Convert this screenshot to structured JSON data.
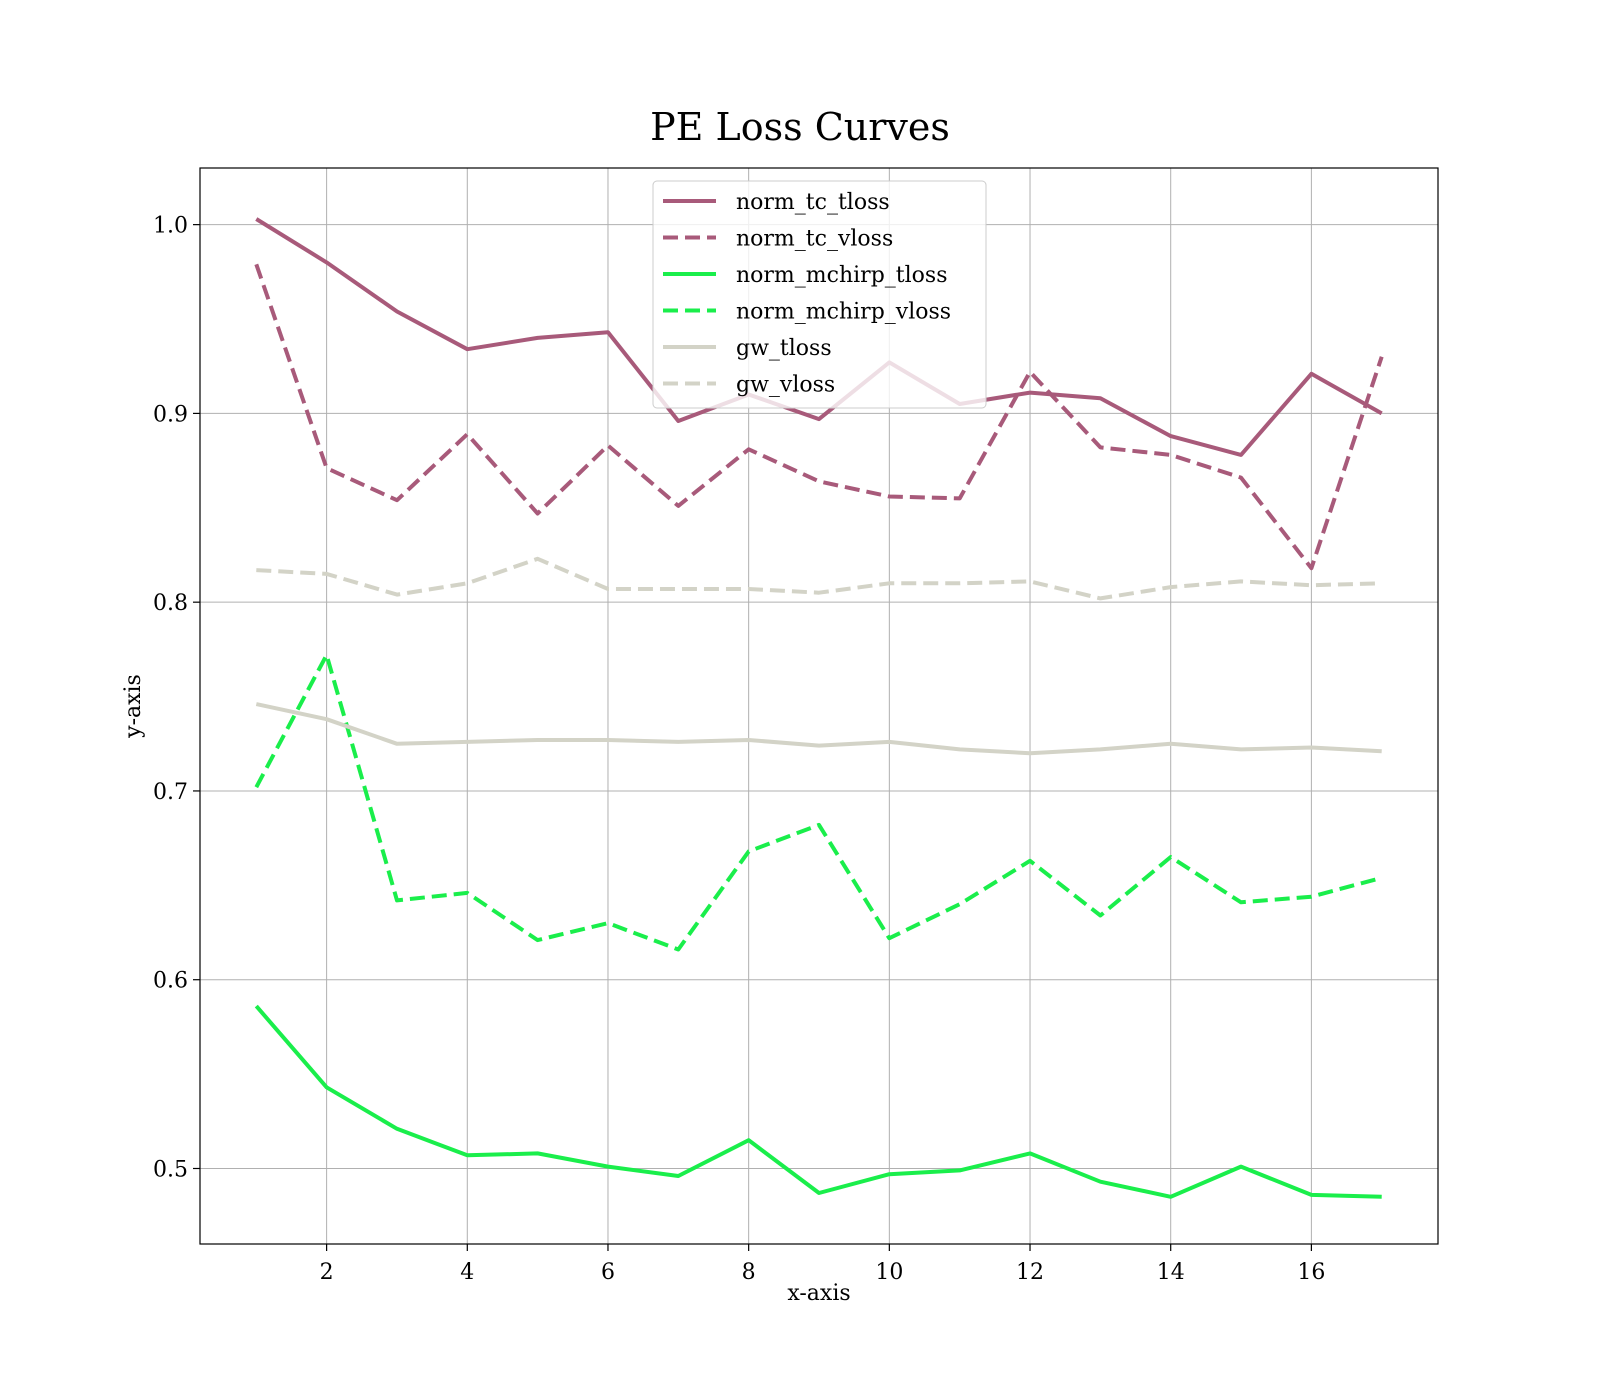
{
  "chart_data": {
    "type": "line",
    "title": "PE Loss Curves",
    "xlabel": "x-axis",
    "ylabel": "y-axis",
    "xlim": [
      0.2,
      17.8
    ],
    "ylim": [
      0.46,
      1.03
    ],
    "xticks": [
      2,
      4,
      6,
      8,
      10,
      12,
      14,
      16
    ],
    "yticks": [
      0.5,
      0.6,
      0.7,
      0.8,
      0.9,
      1.0
    ],
    "ytick_labels": [
      "0.5",
      "0.6",
      "0.7",
      "0.8",
      "0.9",
      "1.0"
    ],
    "grid": true,
    "legend_position": "upper-center",
    "x": [
      1,
      2,
      3,
      4,
      5,
      6,
      7,
      8,
      9,
      10,
      11,
      12,
      13,
      14,
      15,
      16,
      17
    ],
    "series": [
      {
        "name": "norm_tc_tloss",
        "color": "#a85a7a",
        "dash": "solid",
        "values": [
          1.003,
          0.98,
          0.954,
          0.934,
          0.94,
          0.943,
          0.896,
          0.91,
          0.897,
          0.927,
          0.905,
          0.911,
          0.908,
          0.888,
          0.878,
          0.921,
          0.9
        ]
      },
      {
        "name": "norm_tc_vloss",
        "color": "#a85a7a",
        "dash": "dashed",
        "values": [
          0.979,
          0.871,
          0.854,
          0.889,
          0.847,
          0.883,
          0.851,
          0.881,
          0.864,
          0.856,
          0.855,
          0.922,
          0.882,
          0.878,
          0.866,
          0.818,
          0.93
        ]
      },
      {
        "name": "norm_mchirp_tloss",
        "color": "#1aee4b",
        "dash": "solid",
        "values": [
          0.586,
          0.543,
          0.521,
          0.507,
          0.508,
          0.501,
          0.496,
          0.515,
          0.487,
          0.497,
          0.499,
          0.508,
          0.493,
          0.485,
          0.501,
          0.486,
          0.485
        ]
      },
      {
        "name": "norm_mchirp_vloss",
        "color": "#1aee4b",
        "dash": "dashed",
        "values": [
          0.702,
          0.772,
          0.642,
          0.646,
          0.621,
          0.63,
          0.616,
          0.668,
          0.682,
          0.622,
          0.64,
          0.663,
          0.634,
          0.665,
          0.641,
          0.644,
          0.654
        ]
      },
      {
        "name": "gw_tloss",
        "color": "#d3d3c7",
        "dash": "solid",
        "values": [
          0.746,
          0.738,
          0.725,
          0.726,
          0.727,
          0.727,
          0.726,
          0.727,
          0.724,
          0.726,
          0.722,
          0.72,
          0.722,
          0.725,
          0.722,
          0.723,
          0.721
        ]
      },
      {
        "name": "gw_vloss",
        "color": "#d3d3c7",
        "dash": "dashed",
        "values": [
          0.817,
          0.815,
          0.804,
          0.81,
          0.823,
          0.807,
          0.807,
          0.807,
          0.805,
          0.81,
          0.81,
          0.811,
          0.802,
          0.808,
          0.811,
          0.809,
          0.81
        ]
      }
    ]
  }
}
